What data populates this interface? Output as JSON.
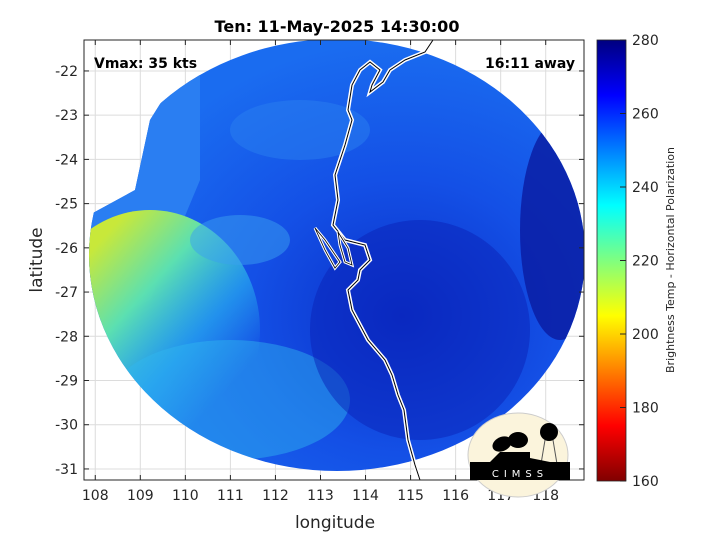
{
  "chart_data": {
    "type": "heatmap",
    "title": "Ten: 11-May-2025 14:30:00",
    "xlabel": "longitude",
    "ylabel": "latitude",
    "xlim": [
      107.75,
      118.85
    ],
    "ylim": [
      -31.25,
      -21.3
    ],
    "xticks": [
      108,
      109,
      110,
      111,
      112,
      113,
      114,
      115,
      116,
      117,
      118
    ],
    "yticks": [
      -22,
      -23,
      -24,
      -25,
      -26,
      -27,
      -28,
      -29,
      -30,
      -31
    ],
    "grid": true,
    "annotations": {
      "left": "Vmax: 35 kts",
      "right": "16:11 away"
    },
    "colorbar": {
      "label": "Brightness Temp - Horizontal Polarization",
      "range": [
        160,
        280
      ],
      "ticks": [
        160,
        180,
        200,
        220,
        240,
        260,
        280
      ],
      "colormap": "jet"
    },
    "logo": "CIMSS"
  }
}
